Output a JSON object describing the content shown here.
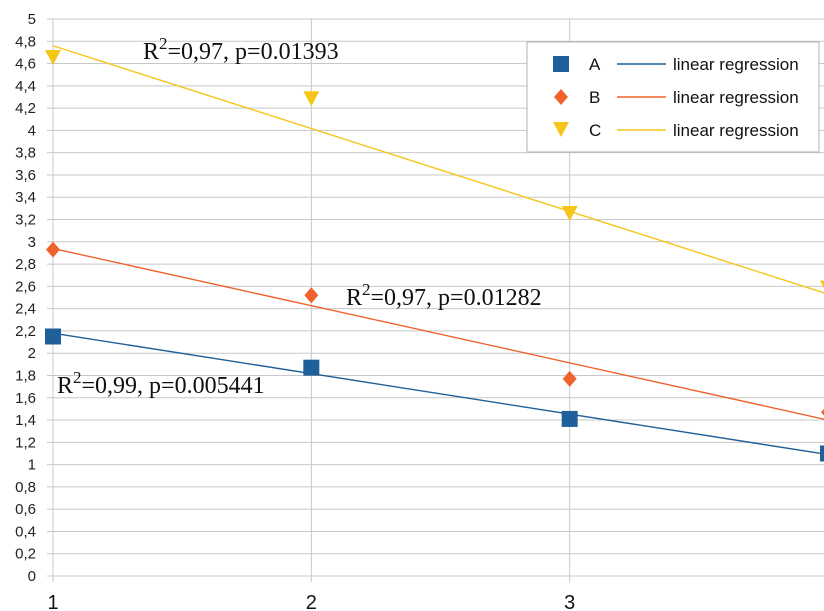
{
  "chart_data": {
    "type": "scatter",
    "title": "",
    "xlabel": "",
    "ylabel": "",
    "xlim": [
      1,
      4
    ],
    "ylim": [
      0,
      5
    ],
    "y_tick_step": 0.2,
    "x_ticks": [
      "1",
      "2",
      "3"
    ],
    "y_ticks": [
      "0",
      "0,2",
      "0,4",
      "0,6",
      "0,8",
      "1",
      "1,2",
      "1,4",
      "1,6",
      "1,8",
      "2",
      "2,2",
      "2,4",
      "2,6",
      "2,8",
      "3",
      "3,2",
      "3,4",
      "3,6",
      "3,8",
      "4",
      "4,2",
      "4,4",
      "4,6",
      "4,8",
      "5"
    ],
    "grid": true,
    "legend_position": "top-right",
    "series": [
      {
        "name": "A",
        "marker": "square",
        "color": "#1f5f9a",
        "x": [
          1,
          2,
          3,
          4
        ],
        "y": [
          2.15,
          1.87,
          1.41,
          1.1
        ],
        "trend_label": "linear regression",
        "trend": [
          [
            1,
            2.18
          ],
          [
            4,
            1.09
          ]
        ],
        "annotation": {
          "r_label": "R",
          "r_sup": "2",
          "text": "=0,99, p=0.005441"
        }
      },
      {
        "name": "B",
        "marker": "diamond",
        "color": "#f0622c",
        "x": [
          1,
          2,
          3,
          4
        ],
        "y": [
          2.93,
          2.52,
          1.77,
          1.47
        ],
        "trend_label": "linear regression",
        "trend": [
          [
            1,
            2.94
          ],
          [
            4,
            1.4
          ]
        ],
        "annotation": {
          "r_label": "R",
          "r_sup": "2",
          "text": "=0,97, p=0.01282"
        }
      },
      {
        "name": "C",
        "marker": "triangle-down",
        "color": "#f5c518",
        "x": [
          1,
          2,
          3,
          4
        ],
        "y": [
          4.65,
          4.28,
          3.25,
          2.58
        ],
        "trend_label": "linear regression",
        "trend": [
          [
            1,
            4.76
          ],
          [
            4,
            2.53
          ]
        ],
        "annotation": {
          "r_label": "R",
          "r_sup": "2",
          "text": "=0,97, p=0.01393"
        }
      }
    ]
  }
}
